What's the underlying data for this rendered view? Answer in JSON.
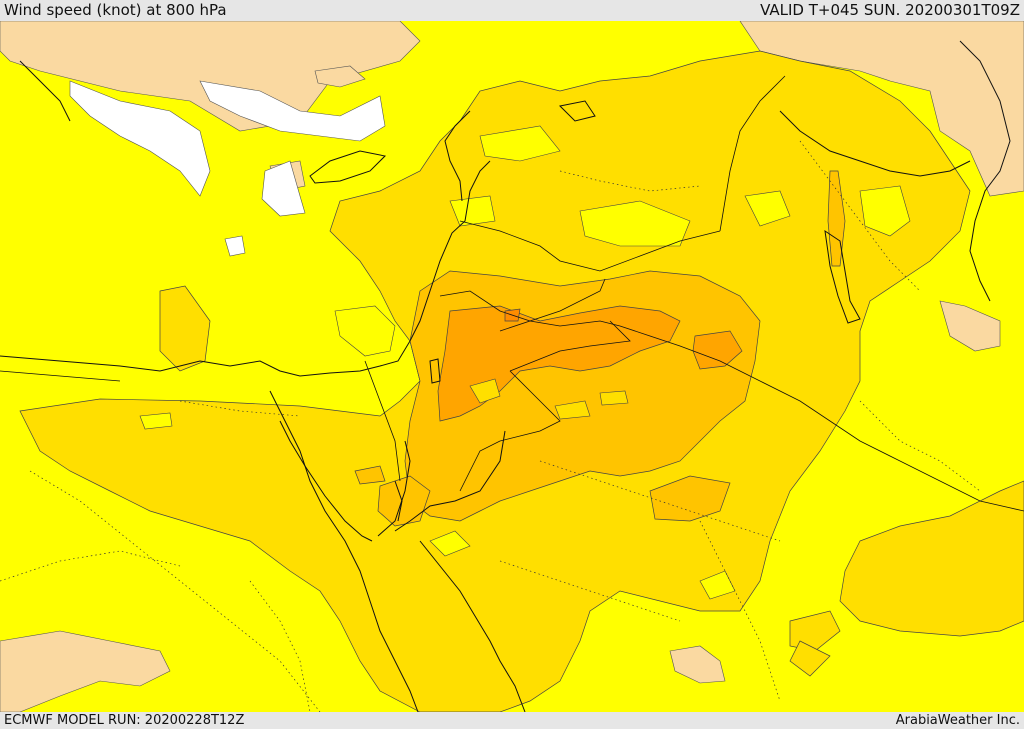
{
  "header": {
    "title": "Wind speed (knot) at 800 hPa",
    "valid": "VALID T+045 SUN. 20200301T09Z"
  },
  "footer": {
    "model_run": "ECMWF MODEL RUN: 20200228T12Z",
    "credit": "ArabiaWeather Inc."
  },
  "map": {
    "colors": {
      "white": "#ffffff",
      "tan": "#fad9a1",
      "yellow": "#ffff00",
      "gold": "#ffdf00",
      "amber": "#ffc400",
      "orange": "#ffa500",
      "outline": "#111111"
    }
  }
}
